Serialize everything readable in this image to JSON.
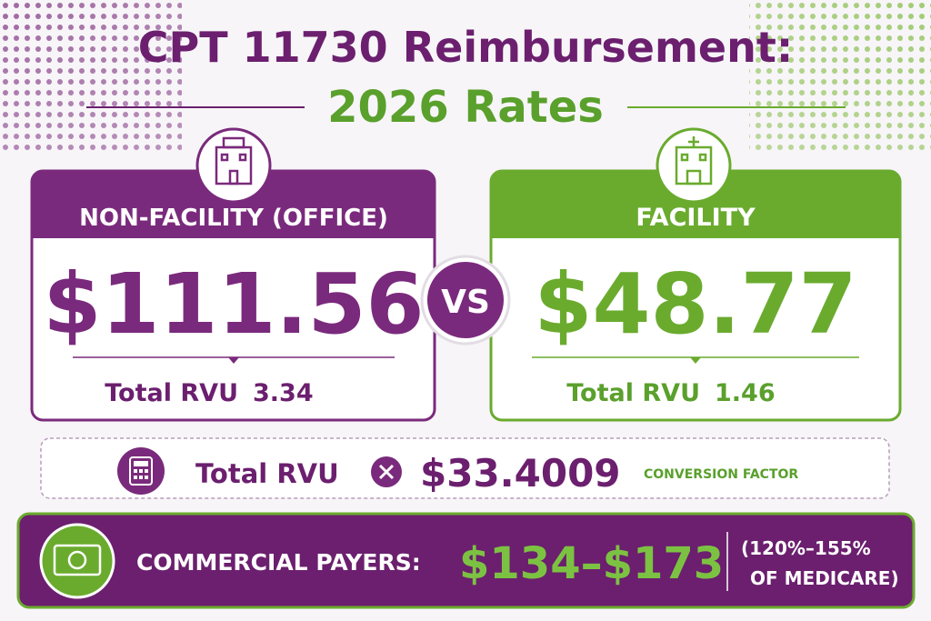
{
  "title": {
    "line1": "CPT 11730 Reimbursement:",
    "line2": "2026 Rates"
  },
  "cards": [
    {
      "header": "NON-FACILITY (OFFICE)",
      "amount": "$111.56",
      "rvu_label": "Total RVU",
      "rvu_value": "3.34"
    },
    {
      "header": "FACILITY",
      "amount": "$48.77",
      "rvu_label": "Total RVU",
      "rvu_value": "1.46"
    }
  ],
  "vs": "VS",
  "formula": {
    "term": "Total RVU",
    "factor": "$33.4009",
    "factor_label": "CONVERSION FACTOR"
  },
  "commercial": {
    "label": "COMMERCIAL PAYERS:",
    "range": "$134–$173",
    "note_line1": "(120%–155%",
    "note_line2": "OF MEDICARE)"
  }
}
